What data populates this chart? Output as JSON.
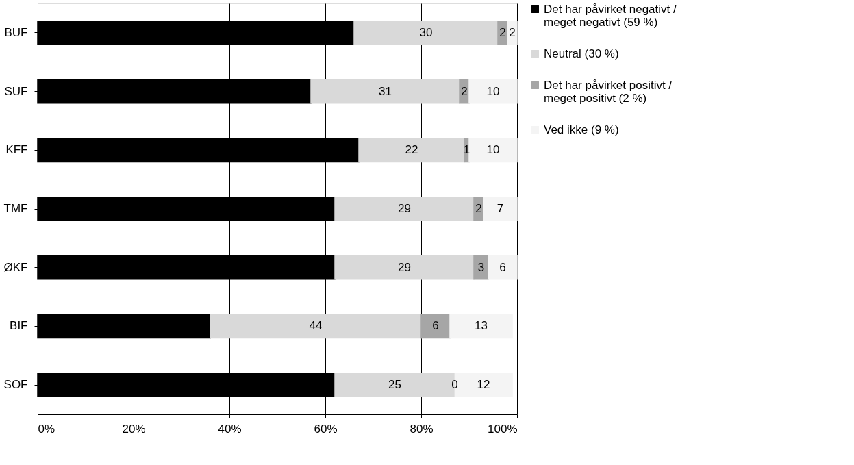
{
  "chart_data": {
    "type": "bar",
    "orientation": "horizontal",
    "stacked": true,
    "categories": [
      "BUF",
      "SUF",
      "KFF",
      "TMF",
      "ØKF",
      "BIF",
      "SOF"
    ],
    "series": [
      {
        "name": "Det har påvirket negativt / meget negativt (59 %)",
        "color": "#000000",
        "values": [
          66,
          57,
          67,
          62,
          62,
          36,
          62
        ],
        "value_labels": [
          null,
          null,
          null,
          null,
          null,
          null,
          null
        ]
      },
      {
        "name": "Neutral (30 %)",
        "color": "#d9d9d9",
        "values": [
          30,
          31,
          22,
          29,
          29,
          44,
          25
        ],
        "value_labels": [
          "30",
          "31",
          "22",
          "29",
          "29",
          "44",
          "25"
        ]
      },
      {
        "name": "Det har påvirket positivt / meget positivt (2 %)",
        "color": "#a6a6a6",
        "values": [
          2,
          2,
          1,
          2,
          3,
          6,
          0
        ],
        "value_labels": [
          "2",
          "2",
          "1",
          "2",
          "3",
          "6",
          "0"
        ]
      },
      {
        "name": "Ved ikke (9 %)",
        "color": "#f4f4f4",
        "values": [
          2,
          10,
          10,
          7,
          6,
          13,
          12
        ],
        "value_labels": [
          "2",
          "10",
          "10",
          "7",
          "6",
          "13",
          "12"
        ]
      }
    ],
    "xlim": [
      0,
      100
    ],
    "xticks": [
      {
        "value": 0,
        "label": "0%"
      },
      {
        "value": 20,
        "label": "20%"
      },
      {
        "value": 40,
        "label": "40%"
      },
      {
        "value": 60,
        "label": "60%"
      },
      {
        "value": 80,
        "label": "80%"
      },
      {
        "value": 100,
        "label": "100%"
      }
    ],
    "grid": "x",
    "legend": "right"
  }
}
